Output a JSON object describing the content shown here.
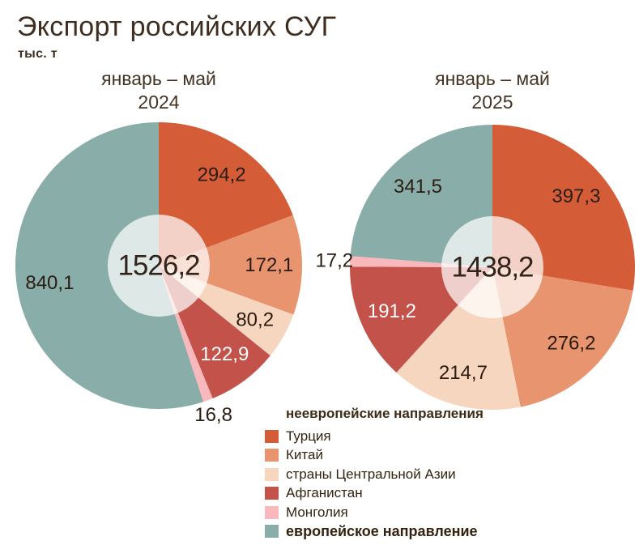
{
  "title": "Экспорт российских СУГ",
  "unit": "тыс. т",
  "chart_data": {
    "type": "pie",
    "title": "Экспорт российских СУГ",
    "unit": "тыс. т",
    "legend_position": "bottom-right",
    "categories": [
      "Турция",
      "Китай",
      "страны Центральной Азии",
      "Афганистан",
      "Монголия",
      "европейское направление"
    ],
    "colors": [
      "#d45c36",
      "#e8946f",
      "#f7d6c0",
      "#c2524a",
      "#f9b8bb",
      "#89ada8"
    ],
    "label_colors": [
      "#2b1c11",
      "#2b1c11",
      "#2b1c11",
      "#ffffff",
      "#2b1c11",
      "#2b1c11"
    ],
    "outside_labels": [
      false,
      false,
      false,
      false,
      true,
      false
    ],
    "charts": [
      {
        "period": "январь – май",
        "year": "2024",
        "total": 1526.2,
        "total_label": "1526,2",
        "values": [
          294.2,
          172.1,
          80.2,
          122.9,
          16.8,
          840.1
        ],
        "labels": [
          "294,2",
          "172,1",
          "80,2",
          "122,9",
          "16,8",
          "840,1"
        ]
      },
      {
        "period": "январь – май",
        "year": "2025",
        "total": 1438.2,
        "total_label": "1438,2",
        "values": [
          397.3,
          276.2,
          214.7,
          191.2,
          17.2,
          341.5
        ],
        "labels": [
          "397,3",
          "276,2",
          "214,7",
          "191,2",
          "17,2",
          "341,5"
        ]
      }
    ],
    "legend": {
      "header": "неевропейские направления",
      "items": [
        {
          "label": "Турция",
          "bold": false
        },
        {
          "label": "Китай",
          "bold": false
        },
        {
          "label": "страны Центральной Азии",
          "bold": false
        },
        {
          "label": "Афганистан",
          "bold": false
        },
        {
          "label": "Монголия",
          "bold": false
        },
        {
          "label": "европейское направление",
          "bold": true
        }
      ]
    }
  }
}
